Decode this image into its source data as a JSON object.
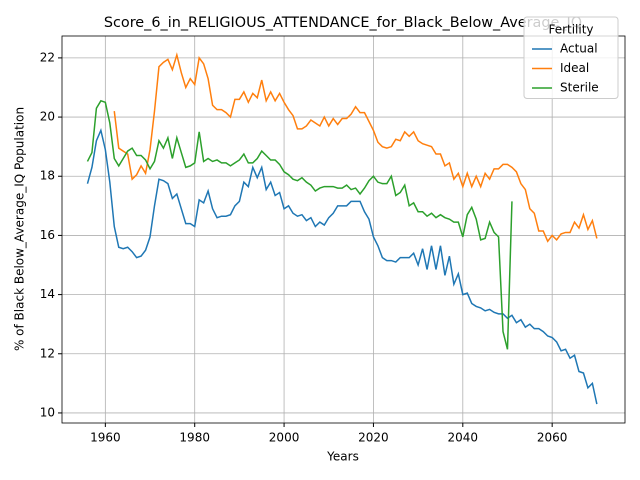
{
  "chart_data": {
    "type": "line",
    "title": "Score_6_in_RELIGIOUS_ATTENDANCE_for_Black_Below_Average_IQ",
    "xlabel": "Years",
    "ylabel": "% of Black Below_Average_IQ Population",
    "legend_title": "Fertility",
    "legend": "upper right",
    "grid": true,
    "xlim": [
      1950.3,
      2076.3
    ],
    "ylim": [
      9.66,
      22.74
    ],
    "xticks": [
      1960,
      1980,
      2000,
      2020,
      2040,
      2060
    ],
    "yticks": [
      10,
      12,
      14,
      16,
      18,
      20,
      22
    ],
    "x": [
      1956,
      1957,
      1958,
      1959,
      1960,
      1961,
      1962,
      1963,
      1964,
      1965,
      1966,
      1967,
      1968,
      1969,
      1970,
      1971,
      1972,
      1973,
      1974,
      1975,
      1976,
      1977,
      1978,
      1979,
      1980,
      1981,
      1982,
      1983,
      1984,
      1985,
      1986,
      1987,
      1988,
      1989,
      1990,
      1991,
      1992,
      1993,
      1994,
      1995,
      1996,
      1997,
      1998,
      1999,
      2000,
      2001,
      2002,
      2003,
      2004,
      2005,
      2006,
      2007,
      2008,
      2009,
      2010,
      2011,
      2012,
      2013,
      2014,
      2015,
      2016,
      2017,
      2018,
      2019,
      2020,
      2021,
      2022,
      2023,
      2024,
      2025,
      2026,
      2027,
      2028,
      2029,
      2030,
      2031,
      2032,
      2033,
      2034,
      2035,
      2036,
      2037,
      2038,
      2039,
      2040,
      2041,
      2042,
      2043,
      2044,
      2045,
      2046,
      2047,
      2048,
      2049,
      2050,
      2051,
      2052,
      2053,
      2054,
      2055,
      2056,
      2057,
      2058,
      2059,
      2060,
      2061,
      2062,
      2063,
      2064,
      2065,
      2066,
      2067,
      2068,
      2069,
      2070
    ],
    "series": [
      {
        "name": "Actual",
        "color": "#1f77b4",
        "values": [
          17.75,
          18.3,
          19.2,
          19.55,
          18.9,
          17.8,
          16.3,
          15.6,
          15.55,
          15.6,
          15.45,
          15.25,
          15.3,
          15.5,
          15.95,
          17.0,
          17.9,
          17.85,
          17.75,
          17.25,
          17.4,
          16.9,
          16.4,
          16.4,
          16.3,
          17.2,
          17.1,
          17.5,
          16.9,
          16.6,
          16.65,
          16.65,
          16.7,
          17.0,
          17.15,
          17.8,
          17.65,
          18.3,
          17.95,
          18.3,
          17.55,
          17.8,
          17.35,
          17.45,
          16.9,
          17.0,
          16.75,
          16.65,
          16.7,
          16.5,
          16.6,
          16.3,
          16.45,
          16.35,
          16.6,
          16.75,
          17.0,
          17.0,
          17.0,
          17.15,
          17.15,
          17.15,
          16.8,
          16.55,
          15.95,
          15.65,
          15.25,
          15.15,
          15.15,
          15.1,
          15.25,
          15.25,
          15.25,
          15.4,
          15.0,
          15.55,
          14.85,
          15.65,
          14.85,
          15.65,
          14.65,
          15.3,
          14.35,
          14.7,
          14.0,
          14.05,
          13.7,
          13.6,
          13.55,
          13.45,
          13.5,
          13.4,
          13.35,
          13.35,
          13.2,
          13.3,
          13.05,
          13.15,
          12.9,
          13.0,
          12.85,
          12.85,
          12.75,
          12.6,
          12.55,
          12.4,
          12.1,
          12.15,
          11.85,
          11.95,
          11.4,
          11.35,
          10.85,
          11.0,
          10.3
        ]
      },
      {
        "name": "Ideal",
        "color": "#ff7f0e",
        "values": [
          null,
          null,
          null,
          null,
          null,
          null,
          20.2,
          18.95,
          18.85,
          18.75,
          17.9,
          18.05,
          18.35,
          18.1,
          18.9,
          20.2,
          21.7,
          21.85,
          21.95,
          21.6,
          22.1,
          21.5,
          21.0,
          21.3,
          21.1,
          22.0,
          21.8,
          21.3,
          20.4,
          20.25,
          20.25,
          20.15,
          20.0,
          20.6,
          20.6,
          20.85,
          20.5,
          20.8,
          20.65,
          21.25,
          20.55,
          20.85,
          20.55,
          20.8,
          20.5,
          20.25,
          20.05,
          19.6,
          19.6,
          19.7,
          19.9,
          19.8,
          19.7,
          20.0,
          19.7,
          19.95,
          19.75,
          19.95,
          19.95,
          20.1,
          20.35,
          20.15,
          20.15,
          19.85,
          19.55,
          19.15,
          19.0,
          18.95,
          19.0,
          19.25,
          19.2,
          19.5,
          19.35,
          19.5,
          19.2,
          19.1,
          19.05,
          19.0,
          18.75,
          18.75,
          18.35,
          18.45,
          17.9,
          18.1,
          17.65,
          18.1,
          17.65,
          18.0,
          17.65,
          18.1,
          17.9,
          18.25,
          18.25,
          18.4,
          18.4,
          18.3,
          18.15,
          17.75,
          17.55,
          16.9,
          16.75,
          16.15,
          16.15,
          15.8,
          16.0,
          15.85,
          16.05,
          16.1,
          16.1,
          16.45,
          16.25,
          16.7,
          16.2,
          16.5,
          15.9
        ]
      },
      {
        "name": "Sterile",
        "color": "#2ca02c",
        "values": [
          18.5,
          18.8,
          20.3,
          20.55,
          20.5,
          19.8,
          18.6,
          18.35,
          18.6,
          18.85,
          18.95,
          18.7,
          18.7,
          18.55,
          18.25,
          18.5,
          19.2,
          18.95,
          19.3,
          18.6,
          19.3,
          18.8,
          18.3,
          18.35,
          18.45,
          19.5,
          18.5,
          18.6,
          18.5,
          18.55,
          18.45,
          18.45,
          18.35,
          18.45,
          18.55,
          18.75,
          18.45,
          18.45,
          18.6,
          18.85,
          18.7,
          18.55,
          18.55,
          18.4,
          18.15,
          18.05,
          17.9,
          17.85,
          17.95,
          17.8,
          17.7,
          17.5,
          17.6,
          17.65,
          17.65,
          17.65,
          17.6,
          17.6,
          17.7,
          17.55,
          17.6,
          17.4,
          17.6,
          17.85,
          18.0,
          17.8,
          17.75,
          17.75,
          18.0,
          17.35,
          17.45,
          17.7,
          17.0,
          17.1,
          16.8,
          16.8,
          16.65,
          16.75,
          16.6,
          16.7,
          16.6,
          16.55,
          16.45,
          16.45,
          15.95,
          16.7,
          16.95,
          16.55,
          15.85,
          15.9,
          16.45,
          16.1,
          15.95,
          12.75,
          12.15,
          17.15,
          null,
          null,
          null,
          null,
          null,
          null,
          null,
          null,
          null,
          null,
          null,
          null,
          null,
          null,
          null,
          null,
          null,
          null,
          null
        ]
      }
    ]
  }
}
